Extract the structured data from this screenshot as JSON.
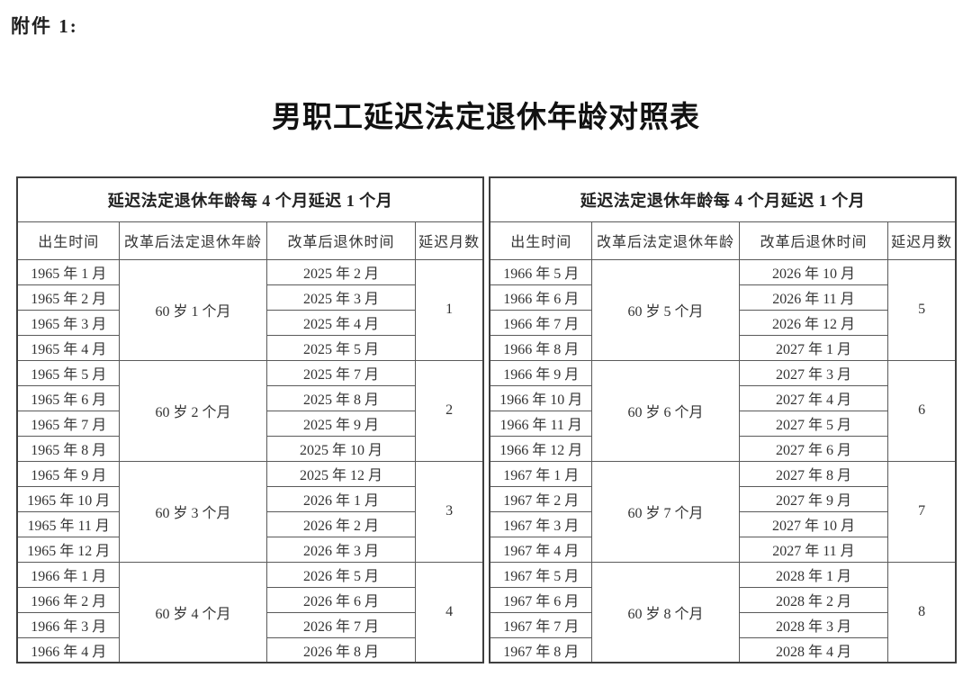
{
  "page": {
    "attachment_label": "附件 1:",
    "title": "男职工延迟法定退休年龄对照表"
  },
  "theme": {
    "background": "#ffffff",
    "text": "#262626",
    "border": "#555555"
  },
  "tables": [
    {
      "header": "延迟法定退休年龄每 4 个月延迟 1 个月",
      "columns": [
        "出生时间",
        "改革后法定退休年龄",
        "改革后退休时间",
        "延迟月数"
      ],
      "groups": [
        {
          "birth_months": [
            "1965 年 1 月",
            "1965 年 2 月",
            "1965 年 3 月",
            "1965 年 4 月"
          ],
          "retirement_age": "60 岁 1 个月",
          "retirement_months": [
            "2025 年 2 月",
            "2025 年 3 月",
            "2025 年 4 月",
            "2025 年 5 月"
          ],
          "delay_months": "1"
        },
        {
          "birth_months": [
            "1965 年 5 月",
            "1965 年 6 月",
            "1965 年 7 月",
            "1965 年 8 月"
          ],
          "retirement_age": "60 岁 2 个月",
          "retirement_months": [
            "2025 年 7 月",
            "2025 年 8 月",
            "2025 年 9 月",
            "2025 年 10 月"
          ],
          "delay_months": "2"
        },
        {
          "birth_months": [
            "1965 年 9 月",
            "1965 年 10 月",
            "1965 年 11 月",
            "1965 年 12 月"
          ],
          "retirement_age": "60 岁 3 个月",
          "retirement_months": [
            "2025 年 12 月",
            "2026 年 1 月",
            "2026 年 2 月",
            "2026 年 3 月"
          ],
          "delay_months": "3"
        },
        {
          "birth_months": [
            "1966 年 1 月",
            "1966 年 2 月",
            "1966 年 3 月",
            "1966 年 4 月"
          ],
          "retirement_age": "60 岁 4 个月",
          "retirement_months": [
            "2026 年 5 月",
            "2026 年 6 月",
            "2026 年 7 月",
            "2026 年 8 月"
          ],
          "delay_months": "4"
        }
      ]
    },
    {
      "header": "延迟法定退休年龄每 4 个月延迟 1 个月",
      "columns": [
        "出生时间",
        "改革后法定退休年龄",
        "改革后退休时间",
        "延迟月数"
      ],
      "groups": [
        {
          "birth_months": [
            "1966 年 5 月",
            "1966 年 6 月",
            "1966 年 7 月",
            "1966 年 8 月"
          ],
          "retirement_age": "60 岁 5 个月",
          "retirement_months": [
            "2026 年 10 月",
            "2026 年 11 月",
            "2026 年 12 月",
            "2027 年 1 月"
          ],
          "delay_months": "5"
        },
        {
          "birth_months": [
            "1966 年 9 月",
            "1966 年 10 月",
            "1966 年 11 月",
            "1966 年 12 月"
          ],
          "retirement_age": "60 岁 6 个月",
          "retirement_months": [
            "2027 年 3 月",
            "2027 年 4 月",
            "2027 年 5 月",
            "2027 年 6 月"
          ],
          "delay_months": "6"
        },
        {
          "birth_months": [
            "1967 年 1 月",
            "1967 年 2 月",
            "1967 年 3 月",
            "1967 年 4 月"
          ],
          "retirement_age": "60 岁 7 个月",
          "retirement_months": [
            "2027 年 8 月",
            "2027 年 9 月",
            "2027 年 10 月",
            "2027 年 11 月"
          ],
          "delay_months": "7"
        },
        {
          "birth_months": [
            "1967 年 5 月",
            "1967 年 6 月",
            "1967 年 7 月",
            "1967 年 8 月"
          ],
          "retirement_age": "60 岁 8 个月",
          "retirement_months": [
            "2028 年 1 月",
            "2028 年 2 月",
            "2028 年 3 月",
            "2028 年 4 月"
          ],
          "delay_months": "8"
        }
      ]
    }
  ],
  "layout_hints": {
    "column_widths": [
      "22%",
      "31.5%",
      "32%",
      "14.5%"
    ]
  }
}
